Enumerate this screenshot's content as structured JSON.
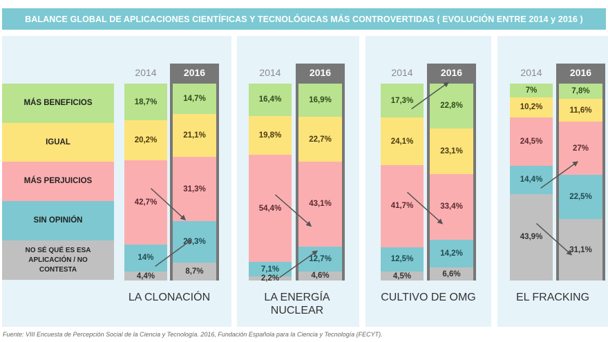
{
  "title": "BALANCE GLOBAL DE APLICACIONES CIENTÍFICAS Y TECNOLÓGICAS MÁS CONTROVERTIDAS ( EVOLUCIÓN ENTRE 2014 y 2016 )",
  "source": "Fuente: VIII Encuesta de Percepción Social de la Ciencia y Tecnología. 2016, Fundación Española para la Ciencia y Tecnología (FECYT).",
  "colors": {
    "title_bg": "#7cc9d4",
    "panel_bg": "#e6f3f9",
    "frame_2016": "#777777",
    "mas_beneficios": "#b9e38f",
    "igual": "#fde47a",
    "mas_perjuicios": "#fbaeb0",
    "sin_opinion": "#7ec8d1",
    "no_contesta": "#c0c0c0"
  },
  "chart_data": {
    "type": "bar",
    "stacked": true,
    "orientation": "vertical",
    "title": "BALANCE GLOBAL DE APLICACIONES CIENTÍFICAS Y TECNOLÓGICAS MÁS CONTROVERTIDAS ( EVOLUCIÓN ENTRE 2014 y 2016 )",
    "unit": "%",
    "years": [
      "2014",
      "2016"
    ],
    "legend": [
      {
        "key": "mas_beneficios",
        "label": "MÁS BENEFICIOS"
      },
      {
        "key": "igual",
        "label": "IGUAL"
      },
      {
        "key": "mas_perjuicios",
        "label": "MÁS PERJUICIOS"
      },
      {
        "key": "sin_opinion",
        "label": "SIN OPINIÓN"
      },
      {
        "key": "no_contesta",
        "label": "NO SÉ QUÉ ES ESA APLICACIÓN / NO CONTESTA"
      }
    ],
    "legend_placement": "left",
    "groups": [
      {
        "name": "LA CLONACIÓN",
        "values": {
          "2014": {
            "mas_beneficios": 18.7,
            "igual": 20.2,
            "mas_perjuicios": 42.7,
            "sin_opinion": 14,
            "no_contesta": 4.4
          },
          "2016": {
            "mas_beneficios": 14.7,
            "igual": 21.1,
            "mas_perjuicios": 31.3,
            "sin_opinion": 20.3,
            "no_contesta": 8.7
          }
        },
        "labels": {
          "2014": {
            "mas_beneficios": "18,7%",
            "igual": "20,2%",
            "mas_perjuicios": "42,7%",
            "sin_opinion": "14%",
            "no_contesta": "4,4%"
          },
          "2016": {
            "mas_beneficios": "14,7%",
            "igual": "21,1%",
            "mas_perjuicios": "31,3%",
            "sin_opinion": "20,3%",
            "no_contesta": "8,7%"
          }
        },
        "arrows": [
          {
            "key": "mas_perjuicios",
            "direction": "down"
          },
          {
            "key": "sin_opinion",
            "direction": "up"
          }
        ]
      },
      {
        "name": "LA ENERGÍA NUCLEAR",
        "values": {
          "2014": {
            "mas_beneficios": 16.4,
            "igual": 19.8,
            "mas_perjuicios": 54.4,
            "sin_opinion": 7.1,
            "no_contesta": 2.2
          },
          "2016": {
            "mas_beneficios": 16.9,
            "igual": 22.7,
            "mas_perjuicios": 43.1,
            "sin_opinion": 12.7,
            "no_contesta": 4.6
          }
        },
        "labels": {
          "2014": {
            "mas_beneficios": "16,4%",
            "igual": "19,8%",
            "mas_perjuicios": "54,4%",
            "sin_opinion": "7,1%",
            "no_contesta": "2,2%"
          },
          "2016": {
            "mas_beneficios": "16,9%",
            "igual": "22,7%",
            "mas_perjuicios": "43,1%",
            "sin_opinion": "12,7%",
            "no_contesta": "4,6%"
          }
        },
        "arrows": [
          {
            "key": "mas_perjuicios",
            "direction": "down"
          },
          {
            "key": "sin_opinion",
            "direction": "up"
          }
        ]
      },
      {
        "name": "CULTIVO DE OMG",
        "values": {
          "2014": {
            "mas_beneficios": 17.3,
            "igual": 24.1,
            "mas_perjuicios": 41.7,
            "sin_opinion": 12.5,
            "no_contesta": 4.5
          },
          "2016": {
            "mas_beneficios": 22.8,
            "igual": 23.1,
            "mas_perjuicios": 33.4,
            "sin_opinion": 14.2,
            "no_contesta": 6.6
          }
        },
        "labels": {
          "2014": {
            "mas_beneficios": "17,3%",
            "igual": "24,1%",
            "mas_perjuicios": "41,7%",
            "sin_opinion": "12,5%",
            "no_contesta": "4,5%"
          },
          "2016": {
            "mas_beneficios": "22,8%",
            "igual": "23,1%",
            "mas_perjuicios": "33,4%",
            "sin_opinion": "14,2%",
            "no_contesta": "6,6%"
          }
        },
        "arrows": [
          {
            "key": "mas_beneficios",
            "direction": "up"
          },
          {
            "key": "mas_perjuicios",
            "direction": "down"
          }
        ]
      },
      {
        "name": "EL FRACKING",
        "values": {
          "2014": {
            "mas_beneficios": 7,
            "igual": 10.2,
            "mas_perjuicios": 24.5,
            "sin_opinion": 14.4,
            "no_contesta": 43.9
          },
          "2016": {
            "mas_beneficios": 7.8,
            "igual": 11.6,
            "mas_perjuicios": 27,
            "sin_opinion": 22.5,
            "no_contesta": 31.1
          }
        },
        "labels": {
          "2014": {
            "mas_beneficios": "7%",
            "igual": "10,2%",
            "mas_perjuicios": "24,5%",
            "sin_opinion": "14,4%",
            "no_contesta": "43,9%"
          },
          "2016": {
            "mas_beneficios": "7,8%",
            "igual": "11,6%",
            "mas_perjuicios": "27%",
            "sin_opinion": "22,5%",
            "no_contesta": "31,1%"
          }
        },
        "arrows": [
          {
            "key": "sin_opinion",
            "direction": "up"
          },
          {
            "key": "no_contesta",
            "direction": "down"
          }
        ]
      }
    ]
  }
}
